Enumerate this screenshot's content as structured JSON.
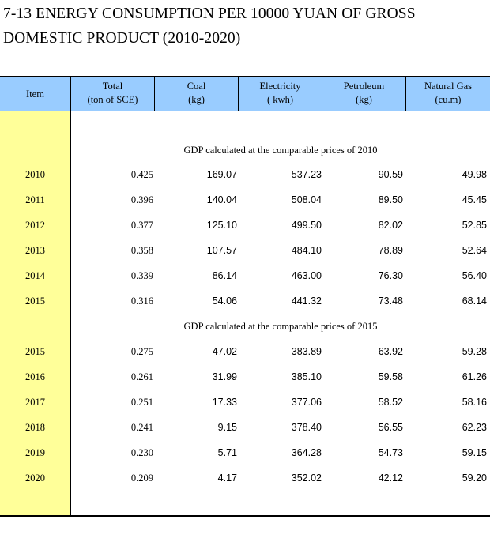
{
  "title": {
    "line1": "7-13  ENERGY CONSUMPTION PER 10000 YUAN OF GROSS",
    "line2": "DOMESTIC PRODUCT (2010-2020)"
  },
  "columns": [
    {
      "label": "Item",
      "unit": ""
    },
    {
      "label": "Total",
      "unit": "(ton of SCE)"
    },
    {
      "label": "Coal",
      "unit": "(kg)"
    },
    {
      "label": "Electricity",
      "unit": "( kwh)"
    },
    {
      "label": "Petroleum",
      "unit": "(kg)"
    },
    {
      "label": "Natural Gas",
      "unit": "(cu.m)"
    }
  ],
  "sections": [
    {
      "label": "GDP calculated at the comparable prices of 2010",
      "rows": [
        {
          "year": "2010",
          "total": "0.425",
          "coal": "169.07",
          "electricity": "537.23",
          "petroleum": "90.59",
          "natural_gas": "49.98"
        },
        {
          "year": "2011",
          "total": "0.396",
          "coal": "140.04",
          "electricity": "508.04",
          "petroleum": "89.50",
          "natural_gas": "45.45"
        },
        {
          "year": "2012",
          "total": "0.377",
          "coal": "125.10",
          "electricity": "499.50",
          "petroleum": "82.02",
          "natural_gas": "52.85"
        },
        {
          "year": "2013",
          "total": "0.358",
          "coal": "107.57",
          "electricity": "484.10",
          "petroleum": "78.89",
          "natural_gas": "52.64"
        },
        {
          "year": "2014",
          "total": "0.339",
          "coal": "86.14",
          "electricity": "463.00",
          "petroleum": "76.30",
          "natural_gas": "56.40"
        },
        {
          "year": "2015",
          "total": "0.316",
          "coal": "54.06",
          "electricity": "441.32",
          "petroleum": "73.48",
          "natural_gas": "68.14"
        }
      ]
    },
    {
      "label": "GDP calculated at the comparable prices of 2015",
      "rows": [
        {
          "year": "2015",
          "total": "0.275",
          "coal": "47.02",
          "electricity": "383.89",
          "petroleum": "63.92",
          "natural_gas": "59.28"
        },
        {
          "year": "2016",
          "total": "0.261",
          "coal": "31.99",
          "electricity": "385.10",
          "petroleum": "59.58",
          "natural_gas": "61.26"
        },
        {
          "year": "2017",
          "total": "0.251",
          "coal": "17.33",
          "electricity": "377.06",
          "petroleum": "58.52",
          "natural_gas": "58.16"
        },
        {
          "year": "2018",
          "total": "0.241",
          "coal": "9.15",
          "electricity": "378.40",
          "petroleum": "56.55",
          "natural_gas": "62.23"
        },
        {
          "year": "2019",
          "total": "0.230",
          "coal": "5.71",
          "electricity": "364.28",
          "petroleum": "54.73",
          "natural_gas": "59.15"
        },
        {
          "year": "2020",
          "total": "0.209",
          "coal": "4.17",
          "electricity": "352.02",
          "petroleum": "42.12",
          "natural_gas": "59.20"
        }
      ]
    }
  ],
  "colors": {
    "header_bg": "#99ccff",
    "item_column_bg": "#ffff99",
    "rules": "#000000"
  }
}
